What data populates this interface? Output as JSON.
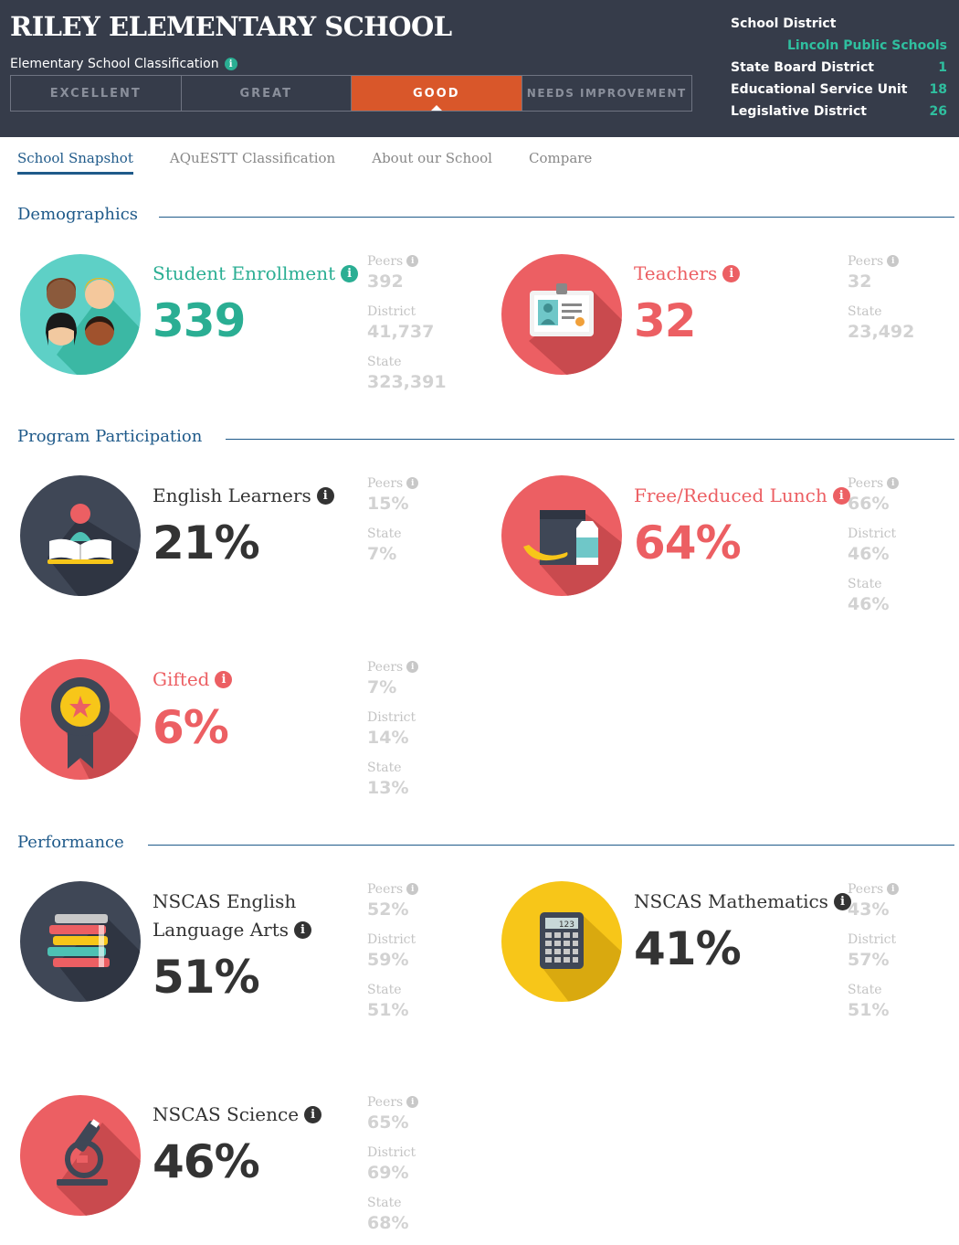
{
  "header": {
    "school_name": "RILEY ELEMENTARY SCHOOL",
    "classification_label": "Elementary School Classification",
    "ratings": [
      "EXCELLENT",
      "GREAT",
      "GOOD",
      "NEEDS IMPROVEMENT"
    ],
    "active_rating": "GOOD",
    "district_info": {
      "school_district_label": "School District",
      "school_district_value": "Lincoln Public Schools",
      "state_board_label": "State Board District",
      "state_board_value": "1",
      "esu_label": "Educational Service Unit",
      "esu_value": "18",
      "legislative_label": "Legislative District",
      "legislative_value": "26"
    }
  },
  "tabs": [
    "School Snapshot",
    "AQuESTT Classification",
    "About our School",
    "Compare"
  ],
  "sections": {
    "demographics": "Demographics",
    "program": "Program Participation",
    "performance": "Performance"
  },
  "info_glyph": "i",
  "stats": {
    "enrollment": {
      "title": "Student Enrollment",
      "value": "339",
      "icon": "students-icon",
      "comparisons": [
        {
          "label": "Peers",
          "value": "392"
        },
        {
          "label": "District",
          "value": "41,737"
        },
        {
          "label": "State",
          "value": "323,391"
        }
      ]
    },
    "teachers": {
      "title": "Teachers",
      "value": "32",
      "icon": "id-badge-icon",
      "comparisons": [
        {
          "label": "Peers",
          "value": "32"
        },
        {
          "label": "State",
          "value": "23,492"
        }
      ]
    },
    "english_learners": {
      "title": "English Learners",
      "value": "21%",
      "icon": "reader-icon",
      "comparisons": [
        {
          "label": "Peers",
          "value": "15%"
        },
        {
          "label": "State",
          "value": "7%"
        }
      ]
    },
    "lunch": {
      "title": "Free/Reduced Lunch",
      "value": "64%",
      "icon": "lunch-bag-icon",
      "comparisons": [
        {
          "label": "Peers",
          "value": "66%"
        },
        {
          "label": "District",
          "value": "46%"
        },
        {
          "label": "State",
          "value": "46%"
        }
      ]
    },
    "gifted": {
      "title": "Gifted",
      "value": "6%",
      "icon": "award-ribbon-icon",
      "comparisons": [
        {
          "label": "Peers",
          "value": "7%"
        },
        {
          "label": "District",
          "value": "14%"
        },
        {
          "label": "State",
          "value": "13%"
        }
      ]
    },
    "ela": {
      "title_line1": "NSCAS English",
      "title_line2": "Language Arts",
      "value": "51%",
      "icon": "books-stack-icon",
      "comparisons": [
        {
          "label": "Peers",
          "value": "52%"
        },
        {
          "label": "District",
          "value": "59%"
        },
        {
          "label": "State",
          "value": "51%"
        }
      ]
    },
    "math": {
      "title": "NSCAS Mathematics",
      "value": "41%",
      "icon": "calculator-icon",
      "calc_display": "123",
      "comparisons": [
        {
          "label": "Peers",
          "value": "43%"
        },
        {
          "label": "District",
          "value": "57%"
        },
        {
          "label": "State",
          "value": "51%"
        }
      ]
    },
    "science": {
      "title": "NSCAS Science",
      "value": "46%",
      "icon": "microscope-icon",
      "comparisons": [
        {
          "label": "Peers",
          "value": "65%"
        },
        {
          "label": "District",
          "value": "69%"
        },
        {
          "label": "State",
          "value": "68%"
        }
      ]
    }
  },
  "colors": {
    "header_bg": "#363c4a",
    "accent_teal": "#2aae93",
    "accent_coral": "#ec5f63",
    "active_rating": "#d9572a",
    "section_blue": "#1f5a8a",
    "icon_dark": "#3f4756",
    "icon_yellow": "#f7c619"
  }
}
